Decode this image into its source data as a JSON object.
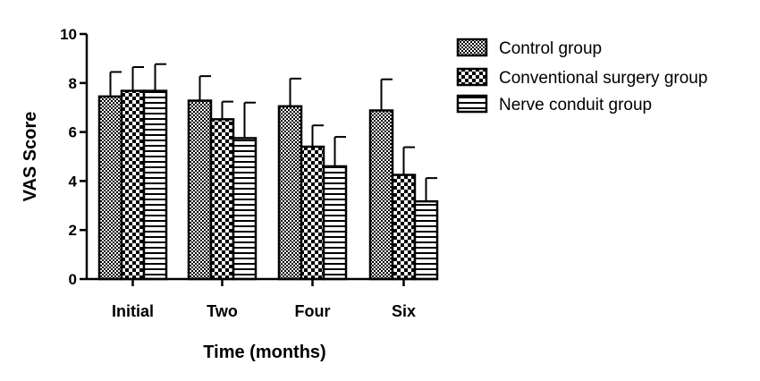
{
  "chart_data": {
    "type": "bar",
    "title": "",
    "xlabel": "Time (months)",
    "ylabel": "VAS Score",
    "ylim": [
      0,
      10
    ],
    "yticks": [
      "0",
      "2",
      "4",
      "6",
      "8",
      "10"
    ],
    "grid": false,
    "legend_position": "top-right",
    "categories": [
      "Initial",
      "Two",
      "Four",
      "Six"
    ],
    "series": [
      {
        "name": "Control group",
        "pattern": "checker-fine",
        "values": [
          7.45,
          7.28,
          7.05,
          6.88
        ],
        "errors": [
          1.0,
          1.0,
          1.13,
          1.27
        ]
      },
      {
        "name": "Conventional surgery group",
        "pattern": "checker-coarse",
        "values": [
          7.68,
          6.52,
          5.4,
          4.25
        ],
        "errors": [
          0.97,
          0.72,
          0.87,
          1.13
        ]
      },
      {
        "name": "Nerve conduit group",
        "pattern": "horizontal-stripes",
        "values": [
          7.68,
          5.75,
          4.6,
          3.17
        ],
        "errors": [
          1.09,
          1.45,
          1.2,
          0.95
        ]
      }
    ],
    "colors": {
      "ink": "#000000",
      "background": "#ffffff"
    }
  }
}
